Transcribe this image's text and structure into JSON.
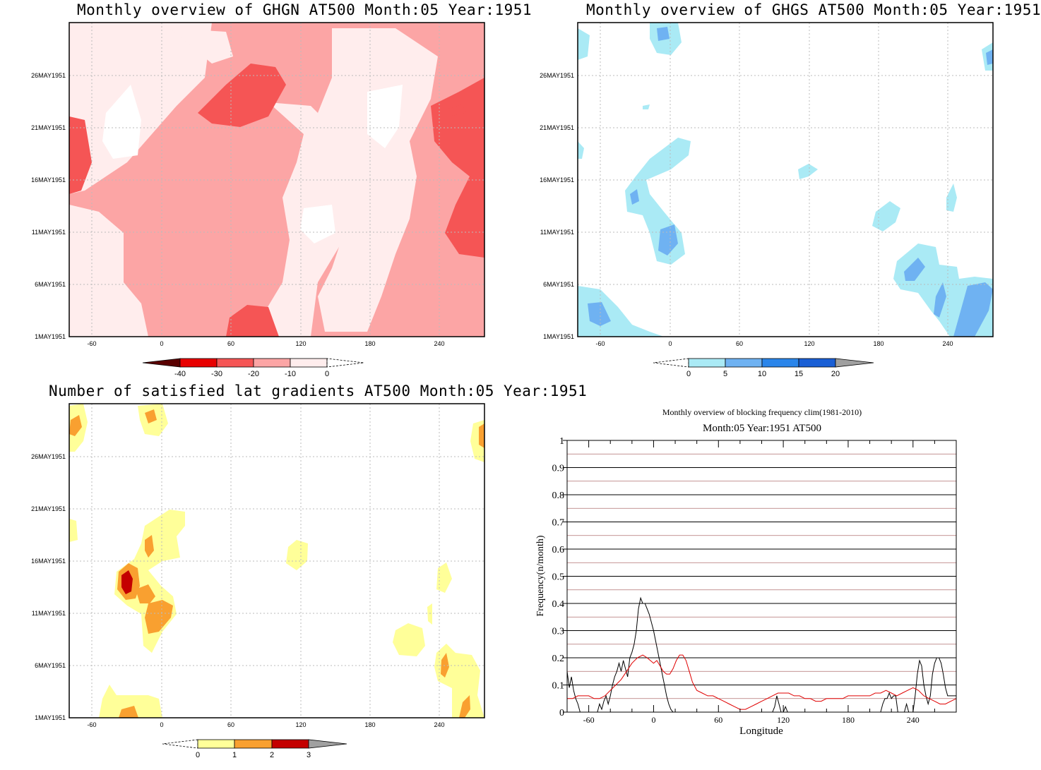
{
  "colors": {
    "ghgn": [
      "#ffeded",
      "#fca5a5",
      "#f55555",
      "#e80000",
      "#5a0000"
    ],
    "ghgs": [
      "#aaeaf5",
      "#6fb2f2",
      "#2a85ea",
      "#1a5fd5",
      "#a0a0a0"
    ],
    "lat": [
      "#ffff99",
      "#f9a030",
      "#c40000",
      "#a0a0a0"
    ],
    "freq_black": "#000000",
    "freq_red": "#e00000"
  },
  "date_ticks": [
    "1MAY1951",
    "6MAY1951",
    "11MAY1951",
    "16MAY1951",
    "21MAY1951",
    "26MAY1951"
  ],
  "lon_ticks": [
    "-60",
    "0",
    "60",
    "120",
    "180",
    "240"
  ],
  "panels": {
    "ghgn": {
      "title": "Monthly overview of GHGN AT500 Month:05 Year:1951",
      "colorbar_labels": [
        "-40",
        "-30",
        "-20",
        "-10",
        "0"
      ]
    },
    "ghgs": {
      "title": "Monthly overview of GHGS AT500 Month:05 Year:1951",
      "colorbar_labels": [
        "0",
        "5",
        "10",
        "15",
        "20"
      ]
    },
    "lat": {
      "title": "Number of satisfied lat gradients AT500 Month:05 Year:1951",
      "colorbar_labels": [
        "0",
        "1",
        "2",
        "3"
      ]
    },
    "freq": {
      "title": "Monthly overview of blocking frequency clim(1981-2010)",
      "subtitle": "Month:05 Year:1951  AT500"
    }
  },
  "chart_data": [
    {
      "type": "heatmap",
      "title": "Monthly overview of GHGN AT500 Month:05 Year:1951",
      "x_ticks": [
        -60,
        0,
        60,
        120,
        180,
        240
      ],
      "y_ticks": [
        "1MAY1951",
        "6MAY1951",
        "11MAY1951",
        "16MAY1951",
        "21MAY1951",
        "26MAY1951"
      ],
      "xlim": [
        -80,
        280
      ],
      "contour_levels": [
        -40,
        -30,
        -20,
        -10,
        0
      ],
      "grid": true
    },
    {
      "type": "heatmap",
      "title": "Monthly overview of GHGS AT500 Month:05 Year:1951",
      "x_ticks": [
        -60,
        0,
        60,
        120,
        180,
        240
      ],
      "y_ticks": [
        "1MAY1951",
        "6MAY1951",
        "11MAY1951",
        "16MAY1951",
        "21MAY1951",
        "26MAY1951"
      ],
      "xlim": [
        -80,
        280
      ],
      "contour_levels": [
        0,
        5,
        10,
        15,
        20
      ],
      "grid": true
    },
    {
      "type": "heatmap",
      "title": "Number of satisfied lat gradients AT500 Month:05 Year:1951",
      "x_ticks": [
        -60,
        0,
        60,
        120,
        180,
        240
      ],
      "y_ticks": [
        "1MAY1951",
        "6MAY1951",
        "11MAY1951",
        "16MAY1951",
        "21MAY1951",
        "26MAY1951"
      ],
      "xlim": [
        -80,
        280
      ],
      "contour_levels": [
        0,
        1,
        2,
        3
      ],
      "grid": true
    },
    {
      "type": "line",
      "title": "Monthly overview of blocking frequency clim(1981-2010)",
      "subtitle": "Month:05 Year:1951  AT500",
      "xlabel": "Longitude",
      "ylabel": "Frequency(n/month)",
      "xlim": [
        -80,
        280
      ],
      "ylim": [
        0,
        1
      ],
      "x_ticks": [
        -60,
        0,
        60,
        120,
        180,
        240
      ],
      "y_ticks": [
        0,
        0.1,
        0.2,
        0.3,
        0.4,
        0.5,
        0.6,
        0.7,
        0.8,
        0.9,
        1
      ],
      "series": [
        {
          "color": "black",
          "points": [
            [
              -80,
              0.15
            ],
            [
              -78,
              0.09
            ],
            [
              -76,
              0.13
            ],
            [
              -74,
              0.08
            ],
            [
              -72,
              0.05
            ],
            [
              -70,
              0.03
            ],
            [
              -68,
              0.0
            ],
            [
              -52,
              0.0
            ],
            [
              -50,
              0.03
            ],
            [
              -48,
              0.01
            ],
            [
              -46,
              0.04
            ],
            [
              -44,
              0.06
            ],
            [
              -42,
              0.03
            ],
            [
              -40,
              0.06
            ],
            [
              -38,
              0.1
            ],
            [
              -36,
              0.13
            ],
            [
              -34,
              0.15
            ],
            [
              -32,
              0.18
            ],
            [
              -30,
              0.15
            ],
            [
              -28,
              0.19
            ],
            [
              -26,
              0.16
            ],
            [
              -24,
              0.13
            ],
            [
              -22,
              0.2
            ],
            [
              -20,
              0.22
            ],
            [
              -18,
              0.25
            ],
            [
              -16,
              0.3
            ],
            [
              -14,
              0.38
            ],
            [
              -12,
              0.42
            ],
            [
              -10,
              0.4
            ],
            [
              -8,
              0.4
            ],
            [
              -6,
              0.38
            ],
            [
              -4,
              0.36
            ],
            [
              -2,
              0.33
            ],
            [
              0,
              0.3
            ],
            [
              2,
              0.26
            ],
            [
              4,
              0.22
            ],
            [
              6,
              0.18
            ],
            [
              8,
              0.14
            ],
            [
              10,
              0.1
            ],
            [
              12,
              0.06
            ],
            [
              14,
              0.03
            ],
            [
              16,
              0.01
            ],
            [
              18,
              0.0
            ],
            [
              110,
              0.0
            ],
            [
              112,
              0.02
            ],
            [
              114,
              0.06
            ],
            [
              116,
              0.03
            ],
            [
              118,
              0.0
            ],
            [
              120,
              0.0
            ],
            [
              122,
              0.02
            ],
            [
              124,
              0.0
            ],
            [
              210,
              0.0
            ],
            [
              212,
              0.03
            ],
            [
              214,
              0.05
            ],
            [
              216,
              0.05
            ],
            [
              218,
              0.07
            ],
            [
              220,
              0.05
            ],
            [
              222,
              0.06
            ],
            [
              224,
              0.06
            ],
            [
              226,
              0.0
            ],
            [
              232,
              0.0
            ],
            [
              234,
              0.03
            ],
            [
              236,
              0.0
            ],
            [
              240,
              0.0
            ],
            [
              242,
              0.06
            ],
            [
              244,
              0.14
            ],
            [
              246,
              0.19
            ],
            [
              248,
              0.17
            ],
            [
              250,
              0.1
            ],
            [
              252,
              0.06
            ],
            [
              254,
              0.03
            ],
            [
              256,
              0.06
            ],
            [
              258,
              0.14
            ],
            [
              260,
              0.18
            ],
            [
              262,
              0.2
            ],
            [
              264,
              0.2
            ],
            [
              266,
              0.18
            ],
            [
              268,
              0.14
            ],
            [
              270,
              0.09
            ],
            [
              272,
              0.06
            ],
            [
              274,
              0.06
            ],
            [
              276,
              0.06
            ],
            [
              280,
              0.06
            ]
          ]
        },
        {
          "color": "red",
          "points": [
            [
              -80,
              0.05
            ],
            [
              -75,
              0.05
            ],
            [
              -70,
              0.06
            ],
            [
              -65,
              0.06
            ],
            [
              -60,
              0.06
            ],
            [
              -55,
              0.05
            ],
            [
              -50,
              0.05
            ],
            [
              -45,
              0.06
            ],
            [
              -40,
              0.08
            ],
            [
              -35,
              0.1
            ],
            [
              -30,
              0.12
            ],
            [
              -25,
              0.15
            ],
            [
              -20,
              0.18
            ],
            [
              -15,
              0.2
            ],
            [
              -10,
              0.21
            ],
            [
              -6,
              0.2
            ],
            [
              -3,
              0.19
            ],
            [
              0,
              0.18
            ],
            [
              3,
              0.19
            ],
            [
              6,
              0.17
            ],
            [
              9,
              0.15
            ],
            [
              12,
              0.14
            ],
            [
              15,
              0.14
            ],
            [
              18,
              0.16
            ],
            [
              21,
              0.19
            ],
            [
              24,
              0.21
            ],
            [
              27,
              0.21
            ],
            [
              30,
              0.19
            ],
            [
              33,
              0.15
            ],
            [
              36,
              0.11
            ],
            [
              40,
              0.08
            ],
            [
              45,
              0.07
            ],
            [
              50,
              0.06
            ],
            [
              55,
              0.06
            ],
            [
              60,
              0.05
            ],
            [
              65,
              0.04
            ],
            [
              70,
              0.03
            ],
            [
              75,
              0.02
            ],
            [
              80,
              0.01
            ],
            [
              85,
              0.01
            ],
            [
              90,
              0.02
            ],
            [
              95,
              0.03
            ],
            [
              100,
              0.04
            ],
            [
              105,
              0.05
            ],
            [
              110,
              0.06
            ],
            [
              115,
              0.07
            ],
            [
              120,
              0.07
            ],
            [
              125,
              0.07
            ],
            [
              130,
              0.06
            ],
            [
              135,
              0.06
            ],
            [
              140,
              0.05
            ],
            [
              145,
              0.05
            ],
            [
              150,
              0.04
            ],
            [
              155,
              0.04
            ],
            [
              160,
              0.05
            ],
            [
              165,
              0.05
            ],
            [
              170,
              0.05
            ],
            [
              175,
              0.05
            ],
            [
              180,
              0.06
            ],
            [
              185,
              0.06
            ],
            [
              190,
              0.06
            ],
            [
              195,
              0.06
            ],
            [
              200,
              0.06
            ],
            [
              205,
              0.07
            ],
            [
              210,
              0.07
            ],
            [
              215,
              0.08
            ],
            [
              220,
              0.07
            ],
            [
              225,
              0.06
            ],
            [
              230,
              0.07
            ],
            [
              235,
              0.08
            ],
            [
              240,
              0.09
            ],
            [
              245,
              0.08
            ],
            [
              250,
              0.06
            ],
            [
              255,
              0.05
            ],
            [
              260,
              0.04
            ],
            [
              265,
              0.03
            ],
            [
              270,
              0.03
            ],
            [
              275,
              0.04
            ],
            [
              280,
              0.05
            ]
          ]
        }
      ],
      "grid": true
    }
  ]
}
